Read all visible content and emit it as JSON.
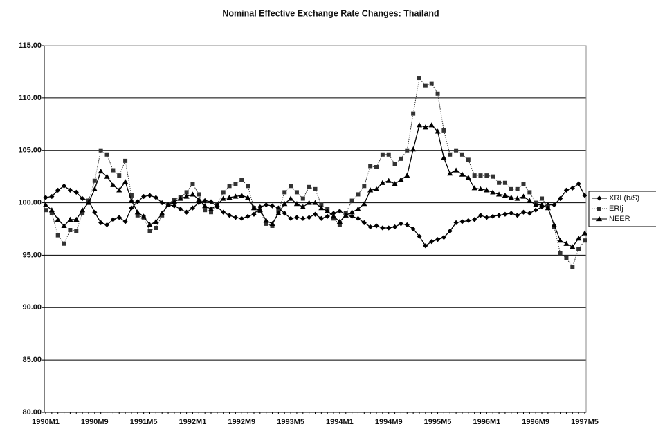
{
  "chart_data": {
    "type": "line",
    "title": "Nominal Effective Exchange Rate Changes: Thailand",
    "categories": [
      "1990M1",
      null,
      null,
      null,
      null,
      null,
      null,
      null,
      "1990M9",
      null,
      null,
      null,
      null,
      null,
      null,
      null,
      "1991M5",
      null,
      null,
      null,
      null,
      null,
      null,
      null,
      "1992M1",
      null,
      null,
      null,
      null,
      null,
      null,
      null,
      "1992M9",
      null,
      null,
      null,
      null,
      null,
      null,
      null,
      "1993M5",
      null,
      null,
      null,
      null,
      null,
      null,
      null,
      "1994M1",
      null,
      null,
      null,
      null,
      null,
      null,
      null,
      "1994M9",
      null,
      null,
      null,
      null,
      null,
      null,
      null,
      "1995M5",
      null,
      null,
      null,
      null,
      null,
      null,
      null,
      "1996M1",
      null,
      null,
      null,
      null,
      null,
      null,
      null,
      "1996M9",
      null,
      null,
      null,
      null,
      null,
      null,
      null,
      "1997M5"
    ],
    "series": [
      {
        "name": "XRI (b/$)",
        "color": "#000000",
        "marker": "diamond",
        "dash": "solid",
        "values": [
          100.5,
          100.6,
          101.2,
          101.6,
          101.2,
          101,
          100.4,
          100.2,
          99.1,
          98.1,
          97.9,
          98.4,
          98.6,
          98.2,
          99.5,
          100.1,
          100.6,
          100.7,
          100.5,
          100,
          99.8,
          99.7,
          99.4,
          99.1,
          99.5,
          100,
          100.2,
          100.1,
          99.6,
          99.1,
          98.8,
          98.6,
          98.5,
          98.7,
          98.9,
          99.6,
          99.8,
          99.7,
          99.5,
          99,
          98.5,
          98.6,
          98.5,
          98.6,
          98.9,
          98.5,
          98.7,
          99,
          99.2,
          98.9,
          98.7,
          98.5,
          98.1,
          97.7,
          97.8,
          97.6,
          97.6,
          97.7,
          98,
          97.9,
          97.5,
          96.8,
          95.9,
          96.3,
          96.5,
          96.7,
          97.3,
          98.1,
          98.2,
          98.3,
          98.4,
          98.8,
          98.6,
          98.7,
          98.8,
          98.9,
          99,
          98.8,
          99.1,
          99,
          99.3,
          99.6,
          99.8,
          99.8,
          100.4,
          101.2,
          101.4,
          101.8,
          100.7
        ]
      },
      {
        "name": "ERIj",
        "color": "#333333",
        "marker": "square",
        "dash": "dotted",
        "values": [
          99.3,
          99,
          96.9,
          96.1,
          97.4,
          97.3,
          99,
          100.2,
          102.1,
          105,
          104.6,
          103.1,
          102.6,
          104,
          100.7,
          98.8,
          98.6,
          97.3,
          97.6,
          98.8,
          99.9,
          100.3,
          100.5,
          101,
          101.8,
          100.8,
          99.3,
          99.1,
          99.9,
          101,
          101.6,
          101.8,
          102.2,
          101.6,
          99.5,
          99.2,
          98,
          97.8,
          99.2,
          101,
          101.6,
          101,
          100.4,
          101.5,
          101.3,
          99.8,
          99.4,
          98.5,
          97.9,
          99,
          100.2,
          100.8,
          101.6,
          103.5,
          103.4,
          104.6,
          104.6,
          103.7,
          104.2,
          105,
          108.5,
          111.9,
          111.2,
          111.4,
          110.4,
          106.9,
          104.6,
          105,
          104.6,
          104.1,
          102.6,
          102.6,
          102.6,
          102.5,
          101.9,
          101.9,
          101.3,
          101.3,
          101.8,
          101,
          100,
          100.4,
          99.6,
          97.7,
          95.2,
          94.7,
          93.9,
          95.6,
          96.4
        ]
      },
      {
        "name": "NEER",
        "color": "#000000",
        "marker": "triangle",
        "dash": "solid",
        "values": [
          99.8,
          99.3,
          98.4,
          97.8,
          98.4,
          98.4,
          99.3,
          100,
          101.3,
          103,
          102.5,
          101.7,
          101.2,
          102,
          100.2,
          99.1,
          98.7,
          97.9,
          98.2,
          99,
          99.8,
          100.1,
          100.4,
          100.6,
          100.8,
          100.3,
          99.7,
          99.4,
          99.8,
          100.4,
          100.5,
          100.6,
          100.7,
          100.5,
          99.5,
          99.3,
          98.3,
          98,
          99,
          99.9,
          100.4,
          99.9,
          99.6,
          100,
          100,
          99.5,
          99.2,
          98.7,
          98.2,
          98.8,
          99.1,
          99.4,
          99.9,
          101.2,
          101.3,
          101.9,
          102.1,
          101.8,
          102.2,
          102.6,
          105.1,
          107.4,
          107.2,
          107.4,
          106.8,
          104.3,
          102.8,
          103.1,
          102.7,
          102.4,
          101.4,
          101.3,
          101.2,
          101,
          100.8,
          100.7,
          100.5,
          100.4,
          100.6,
          100.2,
          99.8,
          99.8,
          99.5,
          97.9,
          96.4,
          96.1,
          95.8,
          96.6,
          97.1
        ]
      }
    ],
    "ylim": [
      80,
      115
    ],
    "yticks": [
      {
        "value": 80,
        "label": "80.00"
      },
      {
        "value": 85,
        "label": "85.00"
      },
      {
        "value": 90,
        "label": "90.00"
      },
      {
        "value": 95,
        "label": "95.00"
      },
      {
        "value": 100,
        "label": "100.00"
      },
      {
        "value": 105,
        "label": "105.00"
      },
      {
        "value": 110,
        "label": "110.00"
      },
      {
        "value": 115,
        "label": "115.00"
      }
    ],
    "grid": true,
    "legend": "right"
  }
}
